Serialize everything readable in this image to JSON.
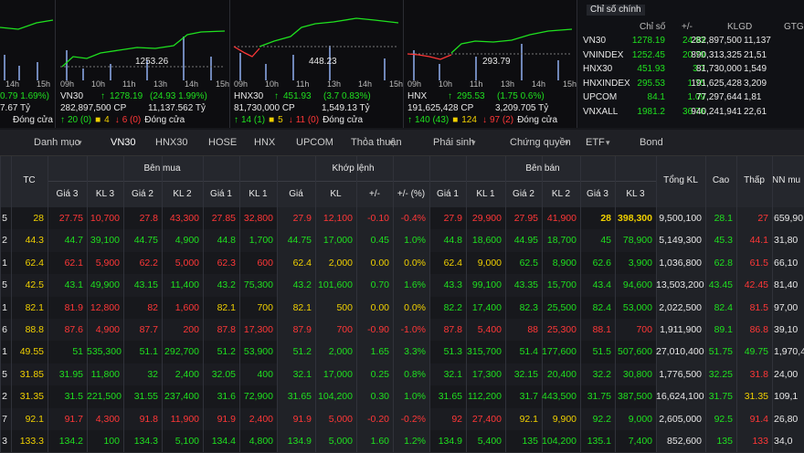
{
  "panels": [
    {
      "change": "0.79 1.69%)",
      "value": "7.67 Tỷ",
      "status": "Đóng cửa"
    },
    {
      "value_label": "1253.26",
      "name": "VN30",
      "price": "1278.19",
      "change": "(24.93 1.99%)",
      "volume": "282,897,500 CP",
      "value": "11,137.562 Tỷ",
      "up": "20 (0)",
      "flat": "4",
      "down": "6 (0)",
      "status": "Đóng cửa"
    },
    {
      "value_label": "448.23",
      "name": "HNX30",
      "price": "451.93",
      "change": "(3.7 0.83%)",
      "volume": "81,730,000 CP",
      "value": "1,549.13 Tỷ",
      "up": "14 (1)",
      "flat": "5",
      "down": "11 (0)",
      "status": "Đóng cửa"
    },
    {
      "value_label": "293.79",
      "name": "HNX",
      "price": "295.53",
      "change": "(1.75 0.6%)",
      "volume": "191,625,428 CP",
      "value": "3,209.705 Tỷ",
      "up": "140 (43)",
      "flat": "124",
      "down": "97 (2)",
      "status": "Đóng cửa"
    }
  ],
  "time_ticks": [
    "09h",
    "10h",
    "11h",
    "13h",
    "14h",
    "15h"
  ],
  "main_index": {
    "title": "Chỉ số chính",
    "headers": [
      "Chỉ số",
      "+/-",
      "KLGD",
      "GTG"
    ],
    "rows": [
      [
        "VN30",
        "1278.19",
        "24.93",
        "282,897,500",
        "11,137"
      ],
      [
        "VNINDEX",
        "1252.45",
        "20.79",
        "890,313,325",
        "21,51"
      ],
      [
        "HNX30",
        "451.93",
        "3.7",
        "81,730,000",
        "1,549"
      ],
      [
        "HNXINDEX",
        "295.53",
        "1.75",
        "191,625,428",
        "3,209"
      ],
      [
        "UPCOM",
        "84.1",
        "1.09",
        "77,297,644",
        "1,81"
      ],
      [
        "VNXALL",
        "1981.2",
        "36.76",
        "940,241,941",
        "22,61"
      ]
    ]
  },
  "tabs": [
    "Danh mục",
    "VN30",
    "HNX30",
    "HOSE",
    "HNX",
    "UPCOM",
    "Thỏa thuận",
    "Phái sinh",
    "Chứng quyền",
    "ETF",
    "Bond"
  ],
  "table": {
    "tc": "TC",
    "groups": [
      "Bên mua",
      "Khớp lệnh",
      "Bên bán"
    ],
    "totals": [
      "Tổng KL",
      "Cao",
      "Thấp",
      "NN mu"
    ],
    "sub_headers": [
      "Giá 3",
      "KL 3",
      "Giá 2",
      "KL 2",
      "Giá 1",
      "KL 1",
      "Giá",
      "KL",
      "+/-",
      "+/- (%)",
      "Giá 1",
      "KL 1",
      "Giá 2",
      "KL 2",
      "Giá 3",
      "KL 3"
    ],
    "rows": [
      [
        "5",
        "28",
        "27.75",
        "10,700",
        "27.8",
        "43,300",
        "27.85",
        "32,800",
        "27.9",
        "12,100",
        "-0.10",
        "-0.4%",
        "27.9",
        "29,900",
        "27.95",
        "41,900",
        "28",
        "398,300",
        "9,500,100",
        "28.1",
        "27",
        "659,90"
      ],
      [
        "2",
        "44.3",
        "44.7",
        "39,100",
        "44.75",
        "4,900",
        "44.8",
        "1,700",
        "44.75",
        "17,000",
        "0.45",
        "1.0%",
        "44.8",
        "18,600",
        "44.95",
        "18,700",
        "45",
        "78,900",
        "5,149,300",
        "45.3",
        "44.1",
        "31,80"
      ],
      [
        "1",
        "62.4",
        "62.1",
        "5,900",
        "62.2",
        "5,000",
        "62.3",
        "600",
        "62.4",
        "2,000",
        "0.00",
        "0.0%",
        "62.4",
        "9,000",
        "62.5",
        "8,900",
        "62.6",
        "3,900",
        "1,036,800",
        "62.8",
        "61.5",
        "66,10"
      ],
      [
        "5",
        "42.5",
        "43.1",
        "49,900",
        "43.15",
        "11,400",
        "43.2",
        "75,300",
        "43.2",
        "101,600",
        "0.70",
        "1.6%",
        "43.3",
        "99,100",
        "43.35",
        "15,700",
        "43.4",
        "94,600",
        "13,503,200",
        "43.45",
        "42.45",
        "81,40"
      ],
      [
        "1",
        "82.1",
        "81.9",
        "12,800",
        "82",
        "1,600",
        "82.1",
        "700",
        "82.1",
        "500",
        "0.00",
        "0.0%",
        "82.2",
        "17,400",
        "82.3",
        "25,500",
        "82.4",
        "53,000",
        "2,022,500",
        "82.4",
        "81.5",
        "97,00"
      ],
      [
        "6",
        "88.8",
        "87.6",
        "4,900",
        "87.7",
        "200",
        "87.8",
        "17,300",
        "87.9",
        "700",
        "-0.90",
        "-1.0%",
        "87.8",
        "5,400",
        "88",
        "25,300",
        "88.1",
        "700",
        "1,911,900",
        "89.1",
        "86.8",
        "39,10"
      ],
      [
        "1",
        "49.55",
        "51",
        "535,300",
        "51.1",
        "292,700",
        "51.2",
        "53,900",
        "51.2",
        "2,000",
        "1.65",
        "3.3%",
        "51.3",
        "315,700",
        "51.4",
        "177,600",
        "51.5",
        "507,600",
        "27,010,400",
        "51.75",
        "49.75",
        "1,970,4"
      ],
      [
        "5",
        "31.85",
        "31.95",
        "11,800",
        "32",
        "2,400",
        "32.05",
        "400",
        "32.1",
        "17,000",
        "0.25",
        "0.8%",
        "32.1",
        "17,300",
        "32.15",
        "20,400",
        "32.2",
        "30,800",
        "1,776,500",
        "32.25",
        "31.8",
        "24,00"
      ],
      [
        "2",
        "31.35",
        "31.5",
        "221,500",
        "31.55",
        "237,400",
        "31.6",
        "72,900",
        "31.65",
        "104,200",
        "0.30",
        "1.0%",
        "31.65",
        "112,200",
        "31.7",
        "443,500",
        "31.75",
        "387,500",
        "16,624,100",
        "31.75",
        "31.35",
        "109,1"
      ],
      [
        "7",
        "92.1",
        "91.7",
        "4,300",
        "91.8",
        "11,900",
        "91.9",
        "2,400",
        "91.9",
        "5,000",
        "-0.20",
        "-0.2%",
        "92",
        "27,400",
        "92.1",
        "9,900",
        "92.2",
        "9,000",
        "2,605,000",
        "92.5",
        "91.4",
        "26,80"
      ],
      [
        "3",
        "133.3",
        "134.2",
        "100",
        "134.3",
        "5,100",
        "134.4",
        "4,800",
        "134.9",
        "5,000",
        "1.60",
        "1.2%",
        "134.9",
        "5,400",
        "135",
        "104,200",
        "135.1",
        "7,400",
        "852,600",
        "135",
        "133",
        "34,0"
      ]
    ]
  }
}
